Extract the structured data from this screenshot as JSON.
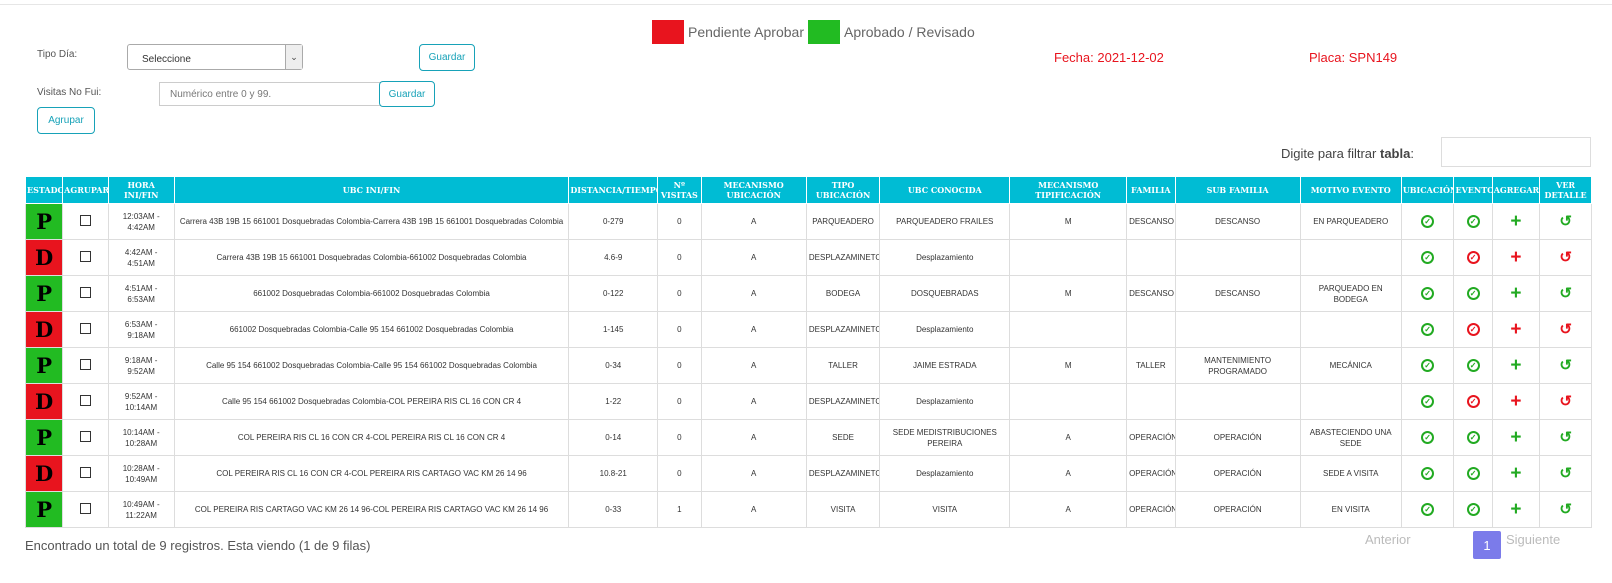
{
  "legend": {
    "pending_label": "Pendiente Aprobar",
    "pending_color": "#e8141e",
    "approved_label": "Aprobado / Revisado",
    "approved_color": "#22bb22"
  },
  "form": {
    "tipo_dia_label": "Tipo Día:",
    "tipo_dia_value": "Seleccione",
    "guardar1": "Guardar",
    "visitas_label": "Visitas No Fui:",
    "visitas_placeholder": "Numérico entre 0 y 99.",
    "guardar2": "Guardar",
    "agrupar": "Agrupar"
  },
  "info": {
    "fecha": "Fecha: 2021-12-02",
    "placa": "Placa: SPN149"
  },
  "filter": {
    "label": "Digite para filtrar ",
    "label_bold": "tabla",
    "label_suffix": ":"
  },
  "table": {
    "headers": [
      "ESTADO",
      "AGRUPAR",
      "HORA INI/FIN",
      "UBC INI/FIN",
      "DISTANCIA/TIEMPO",
      "Nº VISITAS",
      "MECANISMO UBICACIÓN",
      "TIPO UBICACIÓN",
      "UBC CONOCIDA",
      "MECANISMO TIPIFICACIÓN",
      "FAMILIA",
      "SUB FAMILIA",
      "MOTIVO EVENTO",
      "UBICACIÓN",
      "EVENTO",
      "AGREGAR",
      "VER DETALLE"
    ],
    "rows": [
      {
        "estado": "P",
        "hora": "12:03AM - 4:42AM",
        "ubc": "Carrera 43B 19B 15 661001 Dosquebradas Colombia-Carrera 43B 19B 15 661001 Dosquebradas Colombia",
        "dist": "0-279",
        "visitas": "0",
        "mec_ubic": "A",
        "tipo": "PARQUEADERO",
        "conocida": "PARQUEADERO FRAILES",
        "mec_tip": "M",
        "familia": "DESCANSO",
        "sub": "DESCANSO",
        "motivo": "EN PARQUEADERO",
        "evento_ok": true,
        "approved": true
      },
      {
        "estado": "D",
        "hora": "4:42AM - 4:51AM",
        "ubc": "Carrera 43B 19B 15 661001 Dosquebradas Colombia-661002 Dosquebradas Colombia",
        "dist": "4.6-9",
        "visitas": "0",
        "mec_ubic": "A",
        "tipo": "DESPLAZAMINETO",
        "conocida": "Desplazamiento",
        "mec_tip": "",
        "familia": "",
        "sub": "",
        "motivo": "",
        "evento_ok": false,
        "approved": false
      },
      {
        "estado": "P",
        "hora": "4:51AM - 6:53AM",
        "ubc": "661002 Dosquebradas Colombia-661002 Dosquebradas Colombia",
        "dist": "0-122",
        "visitas": "0",
        "mec_ubic": "A",
        "tipo": "BODEGA",
        "conocida": "DOSQUEBRADAS",
        "mec_tip": "M",
        "familia": "DESCANSO",
        "sub": "DESCANSO",
        "motivo": "PARQUEADO EN BODEGA",
        "evento_ok": true,
        "approved": true
      },
      {
        "estado": "D",
        "hora": "6:53AM - 9:18AM",
        "ubc": "661002 Dosquebradas Colombia-Calle 95 154 661002 Dosquebradas Colombia",
        "dist": "1-145",
        "visitas": "0",
        "mec_ubic": "A",
        "tipo": "DESPLAZAMINETO",
        "conocida": "Desplazamiento",
        "mec_tip": "",
        "familia": "",
        "sub": "",
        "motivo": "",
        "evento_ok": false,
        "approved": false
      },
      {
        "estado": "P",
        "hora": "9:18AM - 9:52AM",
        "ubc": "Calle 95 154 661002 Dosquebradas Colombia-Calle 95 154 661002 Dosquebradas Colombia",
        "dist": "0-34",
        "visitas": "0",
        "mec_ubic": "A",
        "tipo": "TALLER",
        "conocida": "JAIME ESTRADA",
        "mec_tip": "M",
        "familia": "TALLER",
        "sub": "MANTENIMIENTO PROGRAMADO",
        "motivo": "MECÁNICA",
        "evento_ok": true,
        "approved": true
      },
      {
        "estado": "D",
        "hora": "9:52AM - 10:14AM",
        "ubc": "Calle 95 154 661002 Dosquebradas Colombia-COL PEREIRA RIS CL 16 CON CR 4",
        "dist": "1-22",
        "visitas": "0",
        "mec_ubic": "A",
        "tipo": "DESPLAZAMINETO",
        "conocida": "Desplazamiento",
        "mec_tip": "",
        "familia": "",
        "sub": "",
        "motivo": "",
        "evento_ok": false,
        "approved": false
      },
      {
        "estado": "P",
        "hora": "10:14AM - 10:28AM",
        "ubc": "COL PEREIRA RIS CL 16 CON CR 4-COL PEREIRA RIS CL 16 CON CR 4",
        "dist": "0-14",
        "visitas": "0",
        "mec_ubic": "A",
        "tipo": "SEDE",
        "conocida": "SEDE MEDISTRIBUCIONES PEREIRA",
        "mec_tip": "A",
        "familia": "OPERACIÓN",
        "sub": "OPERACIÓN",
        "motivo": "ABASTECIENDO UNA SEDE",
        "evento_ok": true,
        "approved": true
      },
      {
        "estado": "D",
        "hora": "10:28AM - 10:49AM",
        "ubc": "COL PEREIRA RIS CL 16 CON CR 4-COL PEREIRA RIS CARTAGO VAC KM 26 14 96",
        "dist": "10.8-21",
        "visitas": "0",
        "mec_ubic": "A",
        "tipo": "DESPLAZAMINETO",
        "conocida": "Desplazamiento",
        "mec_tip": "A",
        "familia": "OPERACIÓN",
        "sub": "OPERACIÓN",
        "motivo": "SEDE A VISITA",
        "evento_ok": true,
        "approved": true
      },
      {
        "estado": "P",
        "hora": "10:49AM - 11:22AM",
        "ubc": "COL PEREIRA RIS CARTAGO VAC KM 26 14 96-COL PEREIRA RIS CARTAGO VAC KM 26 14 96",
        "dist": "0-33",
        "visitas": "1",
        "mec_ubic": "A",
        "tipo": "VISITA",
        "conocida": "VISITA",
        "mec_tip": "A",
        "familia": "OPERACIÓN",
        "sub": "OPERACIÓN",
        "motivo": "EN VISITA",
        "evento_ok": true,
        "approved": true
      }
    ]
  },
  "footer": {
    "summary": "Encontrado un total de 9 registros. Esta viendo (1 de 9 filas)",
    "prev": "Anterior",
    "page": "1",
    "next": "Siguiente"
  }
}
